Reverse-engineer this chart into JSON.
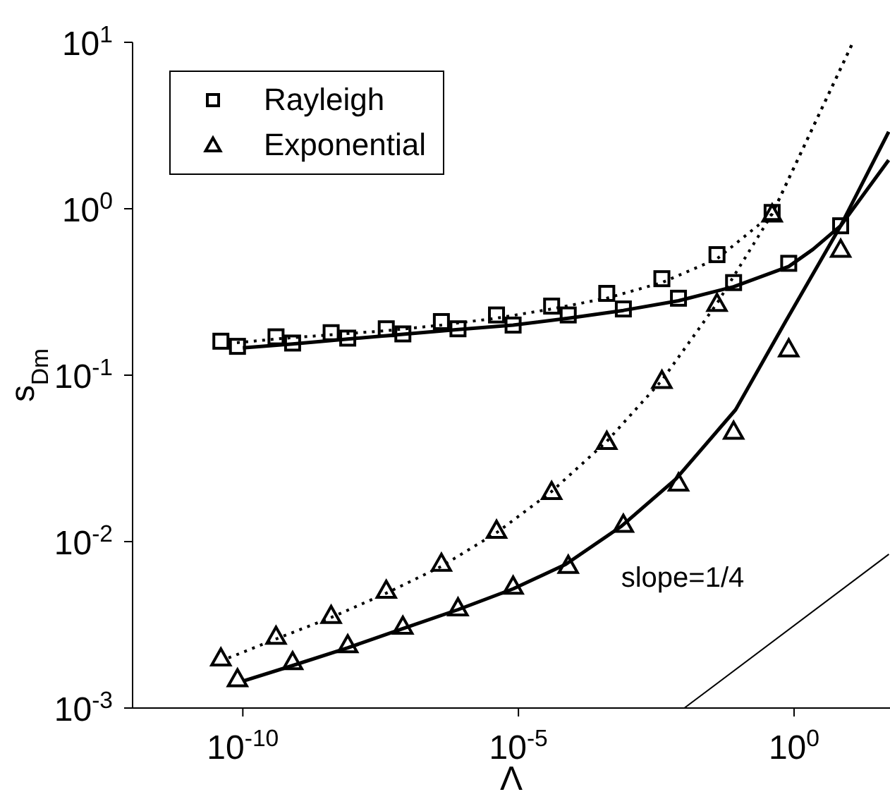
{
  "chart_data": {
    "type": "scatter",
    "xlabel": "Λ",
    "ylabel": "s$_{Dm}$",
    "log": "xy",
    "legend": "top left",
    "xlim": [
      1e-12,
      55
    ],
    "ylim": [
      0.001,
      10
    ],
    "xticks": [
      {
        "value": 1e-10,
        "label": "10$^{-10}$"
      },
      {
        "value": 1e-05,
        "label": "10$^{-5}$"
      },
      {
        "value": 1,
        "label": "10$^{0}$"
      }
    ],
    "yticks": [
      {
        "value": 0.001,
        "label": "10$^{-3}$"
      },
      {
        "value": 0.01,
        "label": "10$^{-2}$"
      },
      {
        "value": 0.1,
        "label": "10$^{-1}$"
      },
      {
        "value": 1,
        "label": "10$^{0}$"
      },
      {
        "value": 10,
        "label": "10$^{1}$"
      }
    ],
    "annotations": [
      "slope=1/4"
    ],
    "series": [
      {
        "name": "Rayleigh",
        "marker": "square",
        "color": "#000000",
        "x": [
          4e-11,
          4e-10,
          4e-09,
          4e-08,
          4e-07,
          4e-06,
          4e-05,
          0.0004,
          0.004,
          0.04,
          0.4
        ],
        "values": [
          0.16,
          0.17,
          0.18,
          0.19,
          0.21,
          0.23,
          0.26,
          0.31,
          0.38,
          0.53,
          0.95
        ]
      },
      {
        "name": "Exponential",
        "marker": "triangle",
        "color": "#000000",
        "x": [
          4e-11,
          4e-10,
          4e-09,
          4e-08,
          4e-07,
          4e-06,
          4e-05,
          0.0004,
          0.004,
          0.04,
          0.4
        ],
        "values": [
          0.002,
          0.0027,
          0.0036,
          0.0051,
          0.0074,
          0.0117,
          0.02,
          0.04,
          0.093,
          0.27,
          0.93
        ]
      },
      {
        "type": "scatter",
        "marker": "square",
        "color": "#000000",
        "x": [
          8e-11,
          8e-10,
          8e-09,
          8e-08,
          8e-07,
          8e-06,
          8e-05,
          0.0008,
          0.008,
          0.08,
          0.8,
          7
        ],
        "values": [
          0.149,
          0.156,
          0.167,
          0.177,
          0.19,
          0.2,
          0.23,
          0.25,
          0.29,
          0.36,
          0.47,
          0.79
        ]
      },
      {
        "type": "scatter",
        "marker": "triangle",
        "color": "#000000",
        "x": [
          8e-11,
          8e-10,
          8e-09,
          8e-08,
          8e-07,
          8e-06,
          8e-05,
          0.0008,
          0.008,
          0.08,
          0.8,
          7
        ],
        "values": [
          0.0015,
          0.0019,
          0.0024,
          0.0031,
          0.004,
          0.0054,
          0.0072,
          0.0127,
          0.0225,
          0.046,
          0.144,
          0.57
        ]
      },
      {
        "type": "line",
        "line_style": "dotted",
        "marker": "none",
        "color": "#000000",
        "x": [
          5.5e-11,
          4e-10,
          4e-09,
          4e-08,
          4e-07,
          4e-06,
          4e-05,
          0.0004,
          0.004,
          0.04,
          0.4,
          11.7
        ],
        "values": [
          0.155,
          0.165,
          0.175,
          0.185,
          0.2,
          0.22,
          0.25,
          0.29,
          0.36,
          0.5,
          0.93,
          10
        ]
      },
      {
        "type": "line",
        "line_style": "dotted",
        "marker": "none",
        "color": "#000000",
        "x": [
          5.5e-11,
          4e-10,
          4e-09,
          4e-08,
          4e-07,
          4e-06,
          4e-05,
          0.0004,
          0.004,
          0.04,
          0.4,
          11.7
        ],
        "values": [
          0.002,
          0.0026,
          0.0035,
          0.0049,
          0.0071,
          0.0113,
          0.02,
          0.04,
          0.093,
          0.27,
          0.93,
          10
        ]
      },
      {
        "type": "line",
        "line_style": "solid",
        "marker": "none",
        "color": "#000000",
        "x": [
          1e-10,
          8e-10,
          8e-09,
          8e-08,
          8e-07,
          8e-06,
          8e-05,
          0.0008,
          0.008,
          0.08,
          0.8,
          2.2,
          7,
          52
        ],
        "values": [
          0.146,
          0.154,
          0.165,
          0.176,
          0.188,
          0.2,
          0.22,
          0.245,
          0.28,
          0.34,
          0.45,
          0.57,
          0.79,
          1.96
        ]
      },
      {
        "type": "line",
        "line_style": "solid",
        "marker": "none",
        "color": "#000000",
        "x": [
          1e-10,
          8e-10,
          8e-09,
          8e-08,
          8e-07,
          8e-06,
          7.2e-05,
          0.00072,
          0.0072,
          0.087,
          0.7,
          7,
          52
        ],
        "values": [
          0.00145,
          0.0018,
          0.0023,
          0.003,
          0.0039,
          0.0052,
          0.0073,
          0.0123,
          0.0238,
          0.062,
          0.21,
          0.79,
          2.9
        ]
      },
      {
        "type": "line",
        "line_style": "solid",
        "marker": "none",
        "color": "#000000",
        "x": [
          0.0102,
          52.5
        ],
        "values": [
          0.001,
          0.0084
        ]
      }
    ]
  }
}
